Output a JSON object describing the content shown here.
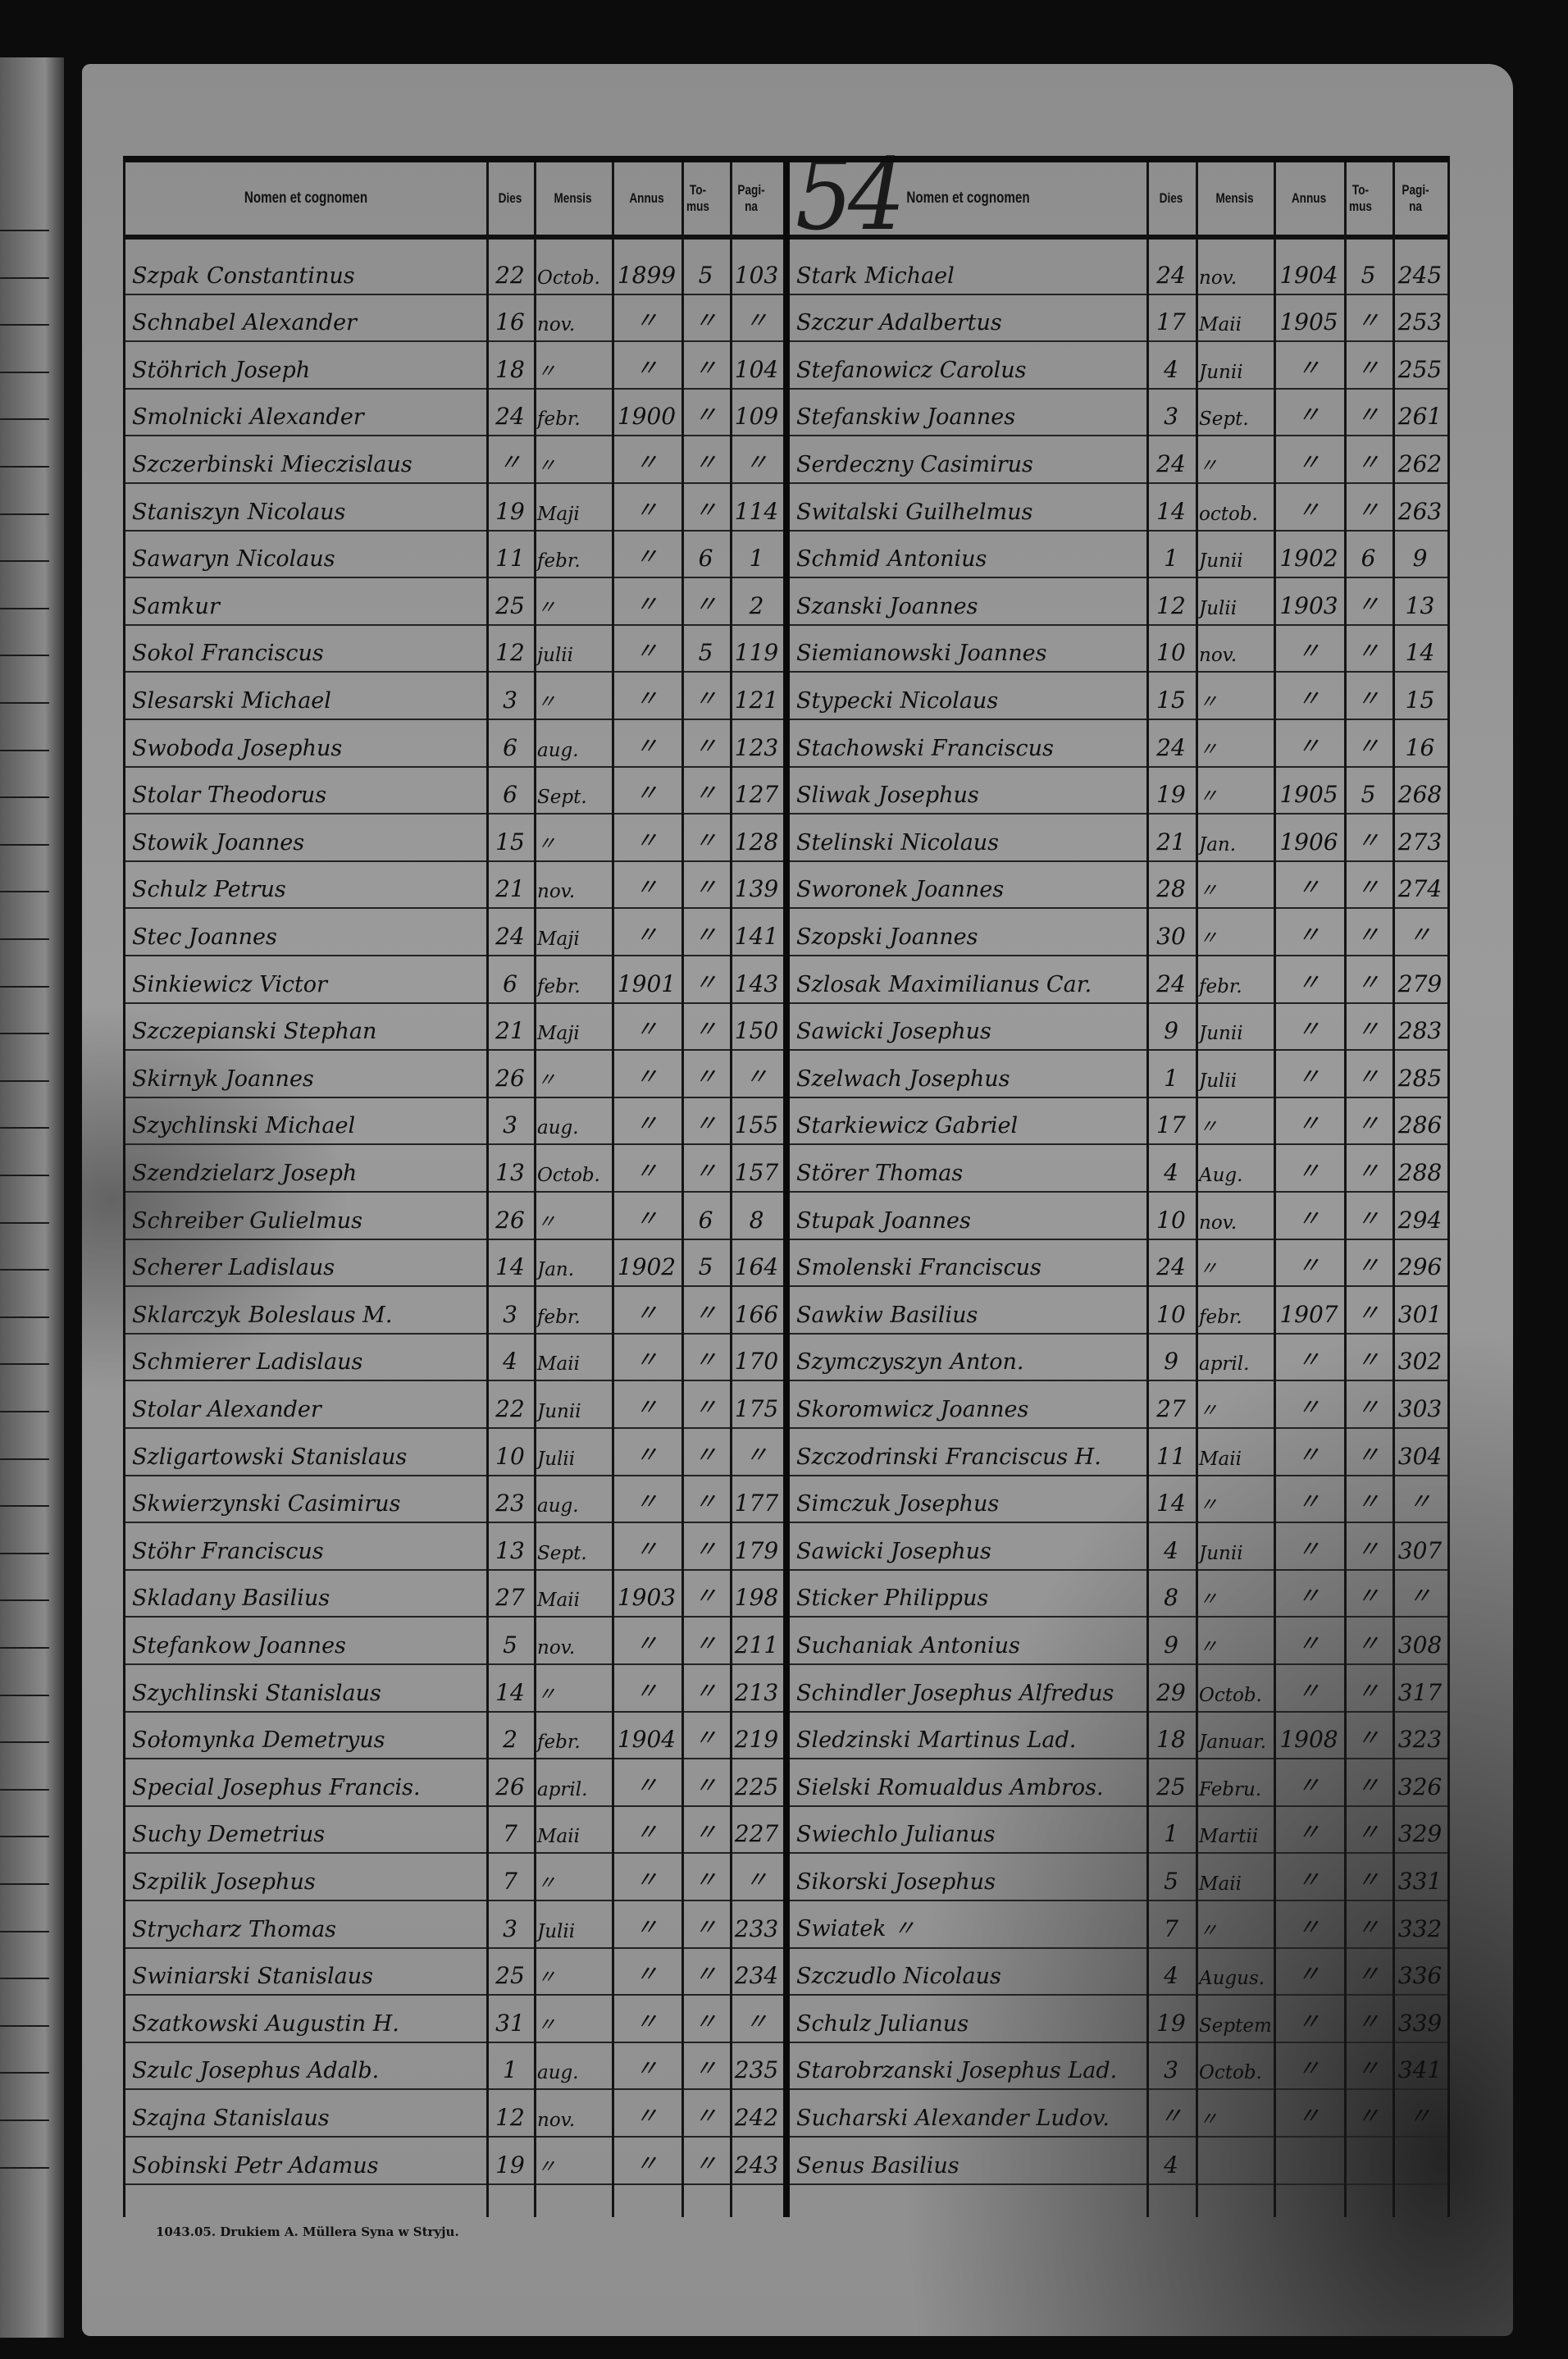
{
  "page_number": "54",
  "columns": [
    "Nomen et cognomen",
    "Dies",
    "Mensis",
    "Annus",
    "To-mus",
    "Pagi-na"
  ],
  "footer_imprint": "1043.05. Drukiem A. Müllera Syna w Stryju.",
  "left_rows": [
    [
      "Szpak Constantinus",
      "22",
      "Octob.",
      "1899",
      "5",
      "103"
    ],
    [
      "Schnabel Alexander",
      "16",
      "nov.",
      "〃",
      "〃",
      "〃"
    ],
    [
      "Stöhrich Joseph",
      "18",
      "〃",
      "〃",
      "〃",
      "104"
    ],
    [
      "Smolnicki Alexander",
      "24",
      "febr.",
      "1900",
      "〃",
      "109"
    ],
    [
      "Szczerbinski Mieczislaus",
      "〃",
      "〃",
      "〃",
      "〃",
      "〃"
    ],
    [
      "Staniszyn Nicolaus",
      "19",
      "Maji",
      "〃",
      "〃",
      "114"
    ],
    [
      "Sawaryn Nicolaus",
      "11",
      "febr.",
      "〃",
      "6",
      "1"
    ],
    [
      "Samkur",
      "25",
      "〃",
      "〃",
      "〃",
      "2"
    ],
    [
      "Sokol Franciscus",
      "12",
      "julii",
      "〃",
      "5",
      "119"
    ],
    [
      "Slesarski Michael",
      "3",
      "〃",
      "〃",
      "〃",
      "121"
    ],
    [
      "Swoboda Josephus",
      "6",
      "aug.",
      "〃",
      "〃",
      "123"
    ],
    [
      "Stolar Theodorus",
      "6",
      "Sept.",
      "〃",
      "〃",
      "127"
    ],
    [
      "Stowik Joannes",
      "15",
      "〃",
      "〃",
      "〃",
      "128"
    ],
    [
      "Schulz Petrus",
      "21",
      "nov.",
      "〃",
      "〃",
      "139"
    ],
    [
      "Stec Joannes",
      "24",
      "Maji",
      "〃",
      "〃",
      "141"
    ],
    [
      "Sinkiewicz Victor",
      "6",
      "febr.",
      "1901",
      "〃",
      "143"
    ],
    [
      "Szczepianski Stephan",
      "21",
      "Maji",
      "〃",
      "〃",
      "150"
    ],
    [
      "Skirnyk Joannes",
      "26",
      "〃",
      "〃",
      "〃",
      "〃"
    ],
    [
      "Szychlinski Michael",
      "3",
      "aug.",
      "〃",
      "〃",
      "155"
    ],
    [
      "Szendzielarz Joseph",
      "13",
      "Octob.",
      "〃",
      "〃",
      "157"
    ],
    [
      "Schreiber Gulielmus",
      "26",
      "〃",
      "〃",
      "6",
      "8"
    ],
    [
      "Scherer Ladislaus",
      "14",
      "Jan.",
      "1902",
      "5",
      "164"
    ],
    [
      "Sklarczyk Boleslaus M.",
      "3",
      "febr.",
      "〃",
      "〃",
      "166"
    ],
    [
      "Schmierer Ladislaus",
      "4",
      "Maii",
      "〃",
      "〃",
      "170"
    ],
    [
      "Stolar Alexander",
      "22",
      "Junii",
      "〃",
      "〃",
      "175"
    ],
    [
      "Szligartowski Stanislaus",
      "10",
      "Julii",
      "〃",
      "〃",
      "〃"
    ],
    [
      "Skwierzynski Casimirus",
      "23",
      "aug.",
      "〃",
      "〃",
      "177"
    ],
    [
      "Stöhr Franciscus",
      "13",
      "Sept.",
      "〃",
      "〃",
      "179"
    ],
    [
      "Skladany Basilius",
      "27",
      "Maii",
      "1903",
      "〃",
      "198"
    ],
    [
      "Stefankow Joannes",
      "5",
      "nov.",
      "〃",
      "〃",
      "211"
    ],
    [
      "Szychlinski Stanislaus",
      "14",
      "〃",
      "〃",
      "〃",
      "213"
    ],
    [
      "Sołomynka Demetryus",
      "2",
      "febr.",
      "1904",
      "〃",
      "219"
    ],
    [
      "Special Josephus Francis.",
      "26",
      "april.",
      "〃",
      "〃",
      "225"
    ],
    [
      "Suchy Demetrius",
      "7",
      "Maii",
      "〃",
      "〃",
      "227"
    ],
    [
      "Szpilik Josephus",
      "7",
      "〃",
      "〃",
      "〃",
      "〃"
    ],
    [
      "Strycharz Thomas",
      "3",
      "Julii",
      "〃",
      "〃",
      "233"
    ],
    [
      "Swiniarski Stanislaus",
      "25",
      "〃",
      "〃",
      "〃",
      "234"
    ],
    [
      "Szatkowski Augustin H.",
      "31",
      "〃",
      "〃",
      "〃",
      "〃"
    ],
    [
      "Szulc Josephus Adalb.",
      "1",
      "aug.",
      "〃",
      "〃",
      "235"
    ],
    [
      "Szajna Stanislaus",
      "12",
      "nov.",
      "〃",
      "〃",
      "242"
    ],
    [
      "Sobinski Petr Adamus",
      "19",
      "〃",
      "〃",
      "〃",
      "243"
    ]
  ],
  "right_rows": [
    [
      "Stark Michael",
      "24",
      "nov.",
      "1904",
      "5",
      "245"
    ],
    [
      "Szczur Adalbertus",
      "17",
      "Maii",
      "1905",
      "〃",
      "253"
    ],
    [
      "Stefanowicz Carolus",
      "4",
      "Junii",
      "〃",
      "〃",
      "255"
    ],
    [
      "Stefanskiw Joannes",
      "3",
      "Sept.",
      "〃",
      "〃",
      "261"
    ],
    [
      "Serdeczny Casimirus",
      "24",
      "〃",
      "〃",
      "〃",
      "262"
    ],
    [
      "Switalski Guilhelmus",
      "14",
      "octob.",
      "〃",
      "〃",
      "263"
    ],
    [
      "Schmid Antonius",
      "1",
      "Junii",
      "1902",
      "6",
      "9"
    ],
    [
      "Szanski Joannes",
      "12",
      "Julii",
      "1903",
      "〃",
      "13"
    ],
    [
      "Siemianowski Joannes",
      "10",
      "nov.",
      "〃",
      "〃",
      "14"
    ],
    [
      "Stypecki Nicolaus",
      "15",
      "〃",
      "〃",
      "〃",
      "15"
    ],
    [
      "Stachowski Franciscus",
      "24",
      "〃",
      "〃",
      "〃",
      "16"
    ],
    [
      "Sliwak Josephus",
      "19",
      "〃",
      "1905",
      "5",
      "268"
    ],
    [
      "Stelinski Nicolaus",
      "21",
      "Jan.",
      "1906",
      "〃",
      "273"
    ],
    [
      "Sworonek Joannes",
      "28",
      "〃",
      "〃",
      "〃",
      "274"
    ],
    [
      "Szopski Joannes",
      "30",
      "〃",
      "〃",
      "〃",
      "〃"
    ],
    [
      "Szlosak Maximilianus Car.",
      "24",
      "febr.",
      "〃",
      "〃",
      "279"
    ],
    [
      "Sawicki Josephus",
      "9",
      "Junii",
      "〃",
      "〃",
      "283"
    ],
    [
      "Szelwach Josephus",
      "1",
      "Julii",
      "〃",
      "〃",
      "285"
    ],
    [
      "Starkiewicz Gabriel",
      "17",
      "〃",
      "〃",
      "〃",
      "286"
    ],
    [
      "Störer Thomas",
      "4",
      "Aug.",
      "〃",
      "〃",
      "288"
    ],
    [
      "Stupak Joannes",
      "10",
      "nov.",
      "〃",
      "〃",
      "294"
    ],
    [
      "Smolenski Franciscus",
      "24",
      "〃",
      "〃",
      "〃",
      "296"
    ],
    [
      "Sawkiw Basilius",
      "10",
      "febr.",
      "1907",
      "〃",
      "301"
    ],
    [
      "Szymczyszyn Anton.",
      "9",
      "april.",
      "〃",
      "〃",
      "302"
    ],
    [
      "Skoromwicz Joannes",
      "27",
      "〃",
      "〃",
      "〃",
      "303"
    ],
    [
      "Szczodrinski Franciscus H.",
      "11",
      "Maii",
      "〃",
      "〃",
      "304"
    ],
    [
      "Simczuk Josephus",
      "14",
      "〃",
      "〃",
      "〃",
      "〃"
    ],
    [
      "Sawicki Josephus",
      "4",
      "Junii",
      "〃",
      "〃",
      "307"
    ],
    [
      "Sticker Philippus",
      "8",
      "〃",
      "〃",
      "〃",
      "〃"
    ],
    [
      "Suchaniak Antonius",
      "9",
      "〃",
      "〃",
      "〃",
      "308"
    ],
    [
      "Schindler Josephus Alfredus",
      "29",
      "Octob.",
      "〃",
      "〃",
      "317"
    ],
    [
      "Sledzinski Martinus Lad.",
      "18",
      "Januar.",
      "1908",
      "〃",
      "323"
    ],
    [
      "Sielski Romualdus Ambros.",
      "25",
      "Febru.",
      "〃",
      "〃",
      "326"
    ],
    [
      "Swiechlo Julianus",
      "1",
      "Martii",
      "〃",
      "〃",
      "329"
    ],
    [
      "Sikorski Josephus",
      "5",
      "Maii",
      "〃",
      "〃",
      "331"
    ],
    [
      "Swiatek 〃",
      "7",
      "〃",
      "〃",
      "〃",
      "332"
    ],
    [
      "Szczudlo Nicolaus",
      "4",
      "Augus.",
      "〃",
      "〃",
      "336"
    ],
    [
      "Schulz Julianus",
      "19",
      "Septem.",
      "〃",
      "〃",
      "339"
    ],
    [
      "Starobrzanski Josephus Lad.",
      "3",
      "Octob.",
      "〃",
      "〃",
      "341"
    ],
    [
      "Sucharski Alexander Ludov.",
      "〃",
      "〃",
      "〃",
      "〃",
      "〃"
    ],
    [
      "Senus Basilius",
      "4",
      "",
      "",
      "",
      ""
    ]
  ]
}
